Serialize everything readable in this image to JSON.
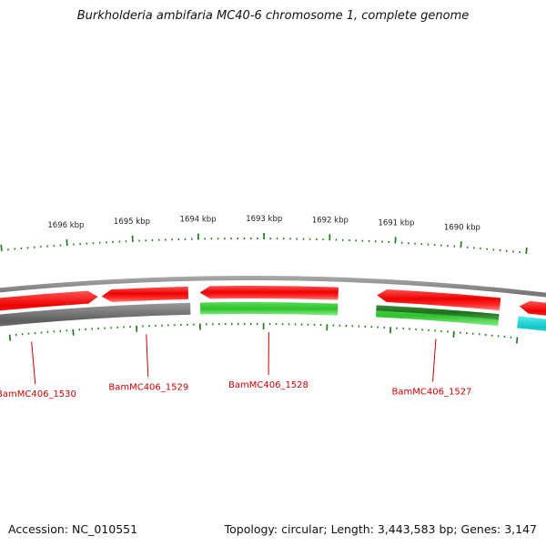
{
  "title": "Burkholderia ambifaria MC40-6 chromosome 1, complete genome",
  "footer": {
    "accession": "Accession: NC_010551",
    "summary": "Topology: circular; Length: 3,443,583 bp; Genes: 3,147"
  },
  "scale": {
    "unit": "kbp",
    "labels": [
      "1696 kbp",
      "1695 kbp",
      "1694 kbp",
      "1693 kbp",
      "1692 kbp",
      "1691 kbp",
      "1690 kbp"
    ]
  },
  "gene_labels": [
    "BamMC406_1530",
    "BamMC406_1529",
    "BamMC406_1528",
    "BamMC406_1527"
  ],
  "colors": {
    "tick": "#1f7a1f",
    "gene_label": "#cc0000",
    "forward_cds": "#ee0000",
    "reverse_cds": "#33cc33",
    "reverse_cds_dark": "#228822",
    "rna_feature": "#22cccc",
    "backbone": "#888888",
    "gray_feature": "#666666"
  }
}
